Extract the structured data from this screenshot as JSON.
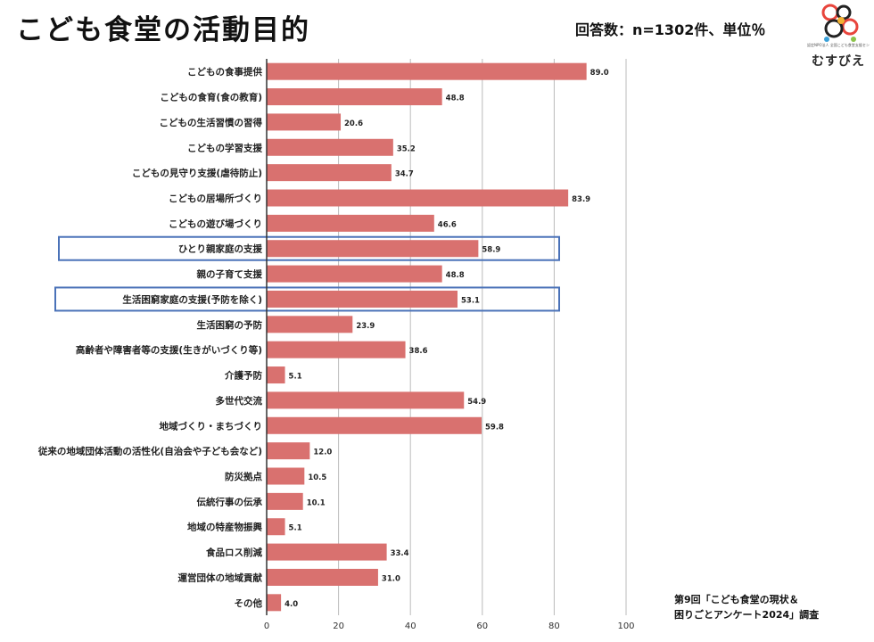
{
  "header": {
    "title": "こども食堂の活動目的",
    "sample_note": "回答数：n=1302件、単位％"
  },
  "logo": {
    "text": "むすびえ",
    "subtext": "認定NPO法人 全国こども食堂支援センター"
  },
  "source": {
    "line1": "第9回「こども食堂の現状＆",
    "line2": "困りごとアンケート2024」調査"
  },
  "colors": {
    "bar": "#d9716f",
    "highlight_box": "#4a72b8",
    "axis": "#333333",
    "grid": "#bbbbbb"
  },
  "chart_data": {
    "type": "bar",
    "orientation": "horizontal",
    "categories": [
      "こどもの食事提供",
      "こどもの食育(食の教育)",
      "こどもの生活習慣の習得",
      "こどもの学習支援",
      "こどもの見守り支援(虐待防止)",
      "こどもの居場所づくり",
      "こどもの遊び場づくり",
      "ひとり親家庭の支援",
      "親の子育て支援",
      "生活困窮家庭の支援(予防を除く)",
      "生活困窮の予防",
      "高齢者や障害者等の支援(生きがいづくり等)",
      "介護予防",
      "多世代交流",
      "地域づくり・まちづくり",
      "従来の地域団体活動の活性化(自治会や子ども会など)",
      "防災拠点",
      "伝統行事の伝承",
      "地域の特産物振興",
      "食品ロス削減",
      "運営団体の地域貢献",
      "その他"
    ],
    "values": [
      89.0,
      48.8,
      20.6,
      35.2,
      34.7,
      83.9,
      46.6,
      58.9,
      48.8,
      53.1,
      23.9,
      38.6,
      5.1,
      54.9,
      59.8,
      12.0,
      10.5,
      10.1,
      5.1,
      33.4,
      31.0,
      4.0
    ],
    "value_labels": [
      "89.0",
      "48.8",
      "20.6",
      "35.2",
      "34.7",
      "83.9",
      "46.6",
      "58.9",
      "48.8",
      "53.1",
      "23.9",
      "38.6",
      "5.1",
      "54.9",
      "59.8",
      "12.0",
      "10.5",
      "10.1",
      "5.1",
      "33.4",
      "31.0",
      "4.0"
    ],
    "highlighted": [
      "ひとり親家庭の支援",
      "生活困窮家庭の支援(予防を除く)"
    ],
    "xlim": [
      0,
      100
    ],
    "xticks": [
      0,
      20,
      40,
      60,
      80,
      100
    ],
    "xtick_labels": [
      "0",
      "20",
      "40",
      "60",
      "80",
      "100"
    ],
    "grid": "vertical"
  }
}
